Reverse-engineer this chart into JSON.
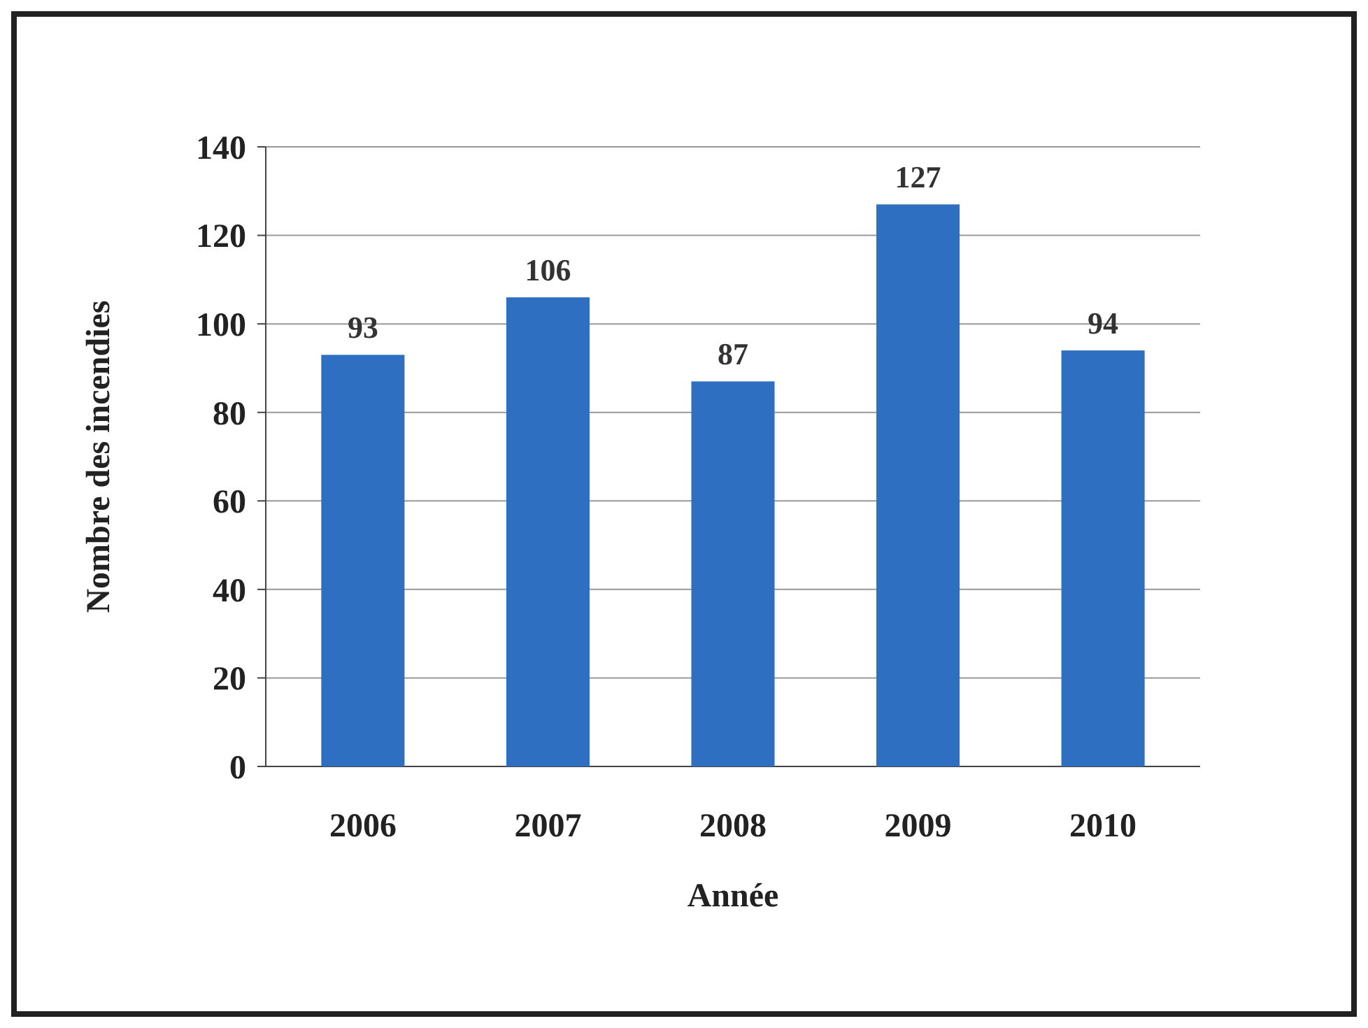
{
  "chart_data": {
    "type": "bar",
    "xlabel": "Année",
    "ylabel": "Nombre des incendies",
    "categories": [
      "2006",
      "2007",
      "2008",
      "2009",
      "2010"
    ],
    "values": [
      93,
      106,
      87,
      127,
      94
    ],
    "color": "#2f6fc1",
    "ylim": [
      0,
      140
    ],
    "yticks": [
      0,
      20,
      40,
      60,
      80,
      100,
      120,
      140
    ],
    "grid": "y",
    "data_labels": true
  }
}
